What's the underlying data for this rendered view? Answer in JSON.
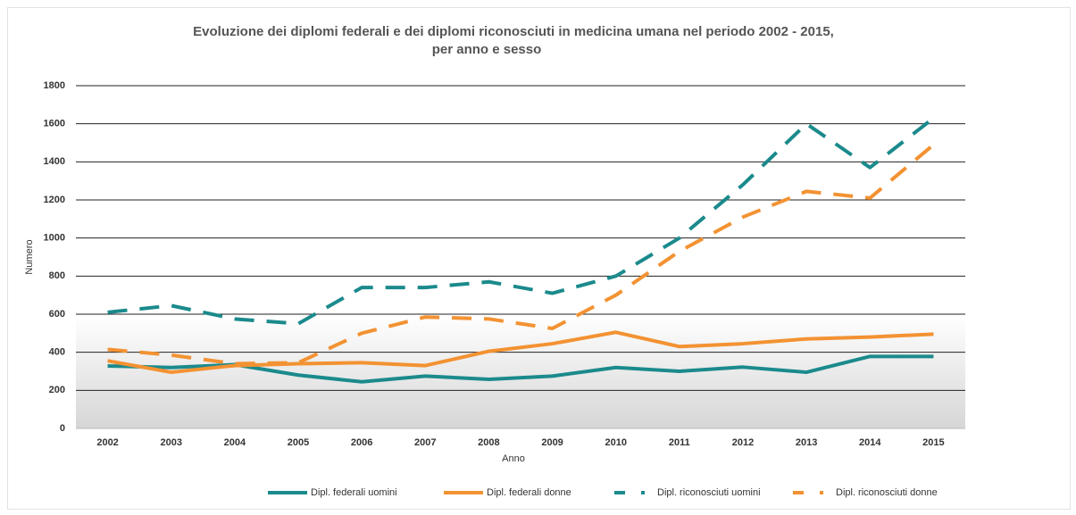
{
  "chart_data": {
    "type": "line",
    "title": [
      "Evoluzione dei diplomi federali e dei diplomi riconosciuti in medicina umana nel periodo 2002 - 2015,",
      "per anno e sesso"
    ],
    "x_label": "Anno",
    "y_label": "Numero",
    "categories": [
      "2002",
      "2003",
      "2004",
      "2005",
      "2006",
      "2007",
      "2008",
      "2009",
      "2010",
      "2011",
      "2012",
      "2013",
      "2014",
      "2015"
    ],
    "series": [
      {
        "name": "Dipl. federali uomini",
        "color": "#1b8a8c",
        "dashed": false,
        "values": [
          328,
          320,
          335,
          280,
          245,
          275,
          258,
          275,
          320,
          300,
          322,
          295,
          378,
          378
        ]
      },
      {
        "name": "Dipl. federali donne",
        "color": "#f39232",
        "dashed": false,
        "values": [
          355,
          295,
          330,
          340,
          345,
          330,
          405,
          445,
          505,
          430,
          445,
          470,
          480,
          495
        ]
      },
      {
        "name": "Dipl. riconosciuti uomini",
        "color": "#1b8a8c",
        "dashed": true,
        "values": [
          610,
          645,
          575,
          550,
          740,
          740,
          770,
          710,
          800,
          1000,
          1280,
          1600,
          1370,
          1630
        ]
      },
      {
        "name": "Dipl. riconosciuti donne",
        "color": "#f39232",
        "dashed": true,
        "values": [
          415,
          385,
          340,
          345,
          500,
          585,
          575,
          525,
          700,
          930,
          1110,
          1245,
          1210,
          1490
        ]
      }
    ],
    "ylim": [
      0,
      1800
    ],
    "yticks": [
      0,
      200,
      400,
      600,
      800,
      1000,
      1200,
      1400,
      1600,
      1800
    ],
    "grid": true
  }
}
